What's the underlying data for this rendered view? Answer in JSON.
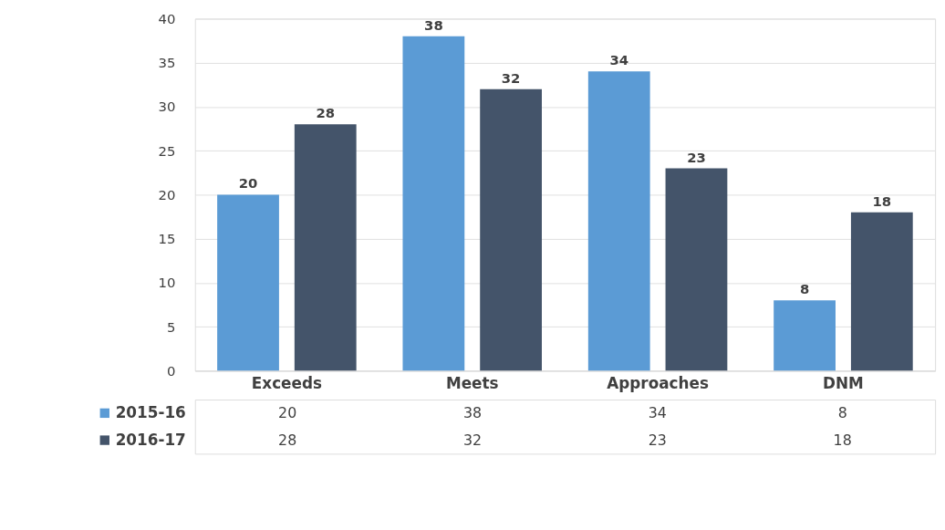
{
  "chart_data": {
    "type": "bar",
    "categories": [
      "Exceeds",
      "Meets",
      "Approaches",
      "DNM"
    ],
    "series": [
      {
        "name": "2015-16",
        "color": "#5b9bd5",
        "values": [
          20,
          38,
          34,
          8
        ]
      },
      {
        "name": "2016-17",
        "color": "#44546a",
        "values": [
          28,
          32,
          23,
          18
        ]
      }
    ],
    "ylim": [
      0,
      40
    ],
    "yticks": [
      0,
      5,
      10,
      15,
      20,
      25,
      30,
      35,
      40
    ],
    "grid": "y",
    "data_labels": true,
    "legend": "bottom",
    "annotations": [
      "20",
      "28",
      "38",
      "32",
      "34",
      "23",
      "8",
      "18"
    ]
  }
}
